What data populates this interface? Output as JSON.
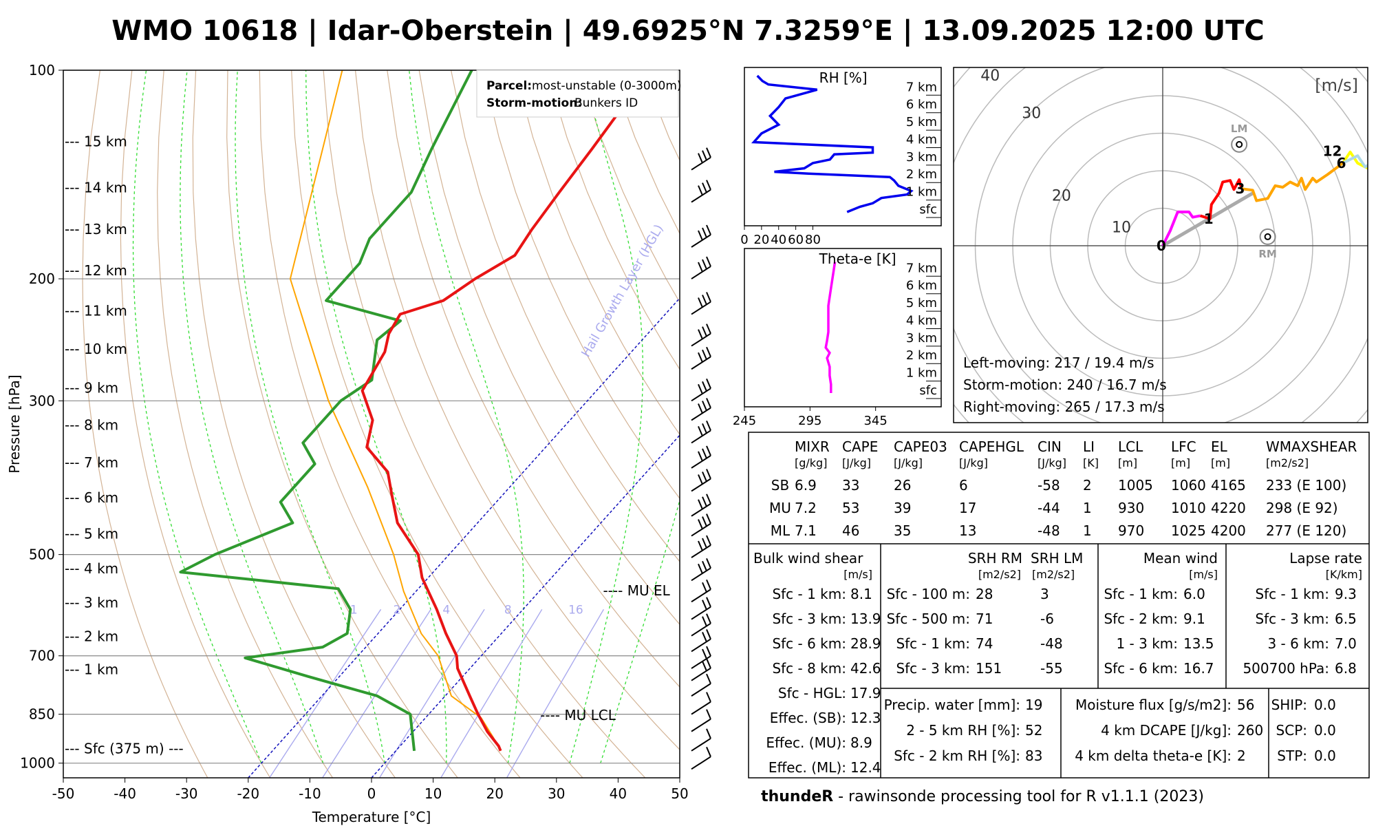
{
  "title": "WMO 10618 | Idar-Oberstein | 49.6925°N 7.3259°E | 13.09.2025 12:00 UTC",
  "footer": {
    "bold": "thundeR",
    "rest": " - rawinsonde processing tool for R v1.1.1 (2023)"
  },
  "skewt": {
    "ylabel": "Pressure [hPa]",
    "xlabel": "Temperature [°C]",
    "x_ticks": [
      -50,
      -40,
      -30,
      -20,
      -10,
      0,
      10,
      20,
      30,
      40,
      50
    ],
    "p_ticks": [
      100,
      200,
      300,
      500,
      700,
      850,
      1000
    ],
    "xlim": [
      -50,
      50
    ],
    "plim": [
      1050,
      100
    ],
    "legend": {
      "parcel_label": "Parcel:",
      "parcel_value": "most-unstable (0-3000m)",
      "storm_label": "Storm-motion:",
      "storm_value": "Bunkers ID"
    },
    "height_labels": [
      {
        "p": 127,
        "text": "--- 15 km"
      },
      {
        "p": 148,
        "text": "--- 14 km"
      },
      {
        "p": 170,
        "text": "--- 13 km"
      },
      {
        "p": 195,
        "text": "--- 12 km"
      },
      {
        "p": 223,
        "text": "--- 11 km"
      },
      {
        "p": 253,
        "text": "--- 10 km"
      },
      {
        "p": 288,
        "text": "--- 9 km"
      },
      {
        "p": 326,
        "text": "--- 8 km"
      },
      {
        "p": 369,
        "text": "--- 7 km"
      },
      {
        "p": 415,
        "text": "--- 6 km"
      },
      {
        "p": 468,
        "text": "--- 5 km"
      },
      {
        "p": 525,
        "text": "--- 4 km"
      },
      {
        "p": 588,
        "text": "--- 3 km"
      },
      {
        "p": 658,
        "text": "--- 2 km"
      },
      {
        "p": 734,
        "text": "--- 1 km"
      },
      {
        "p": 955,
        "text": "--- Sfc (375 m) ---"
      }
    ],
    "annotations": [
      {
        "p": 565,
        "t": 9,
        "text": "---- MU EL"
      },
      {
        "p": 855,
        "t": 17,
        "text": "---- MU LCL"
      }
    ],
    "hgl_label": "Hail Growth Layer (HGL)",
    "mix_labels": [
      "1",
      "2",
      "4",
      "8",
      "16"
    ],
    "colors": {
      "temp": "#e81414",
      "dew": "#2f9a2f",
      "parcel": "#ffa500",
      "isotherm": "#1111bb",
      "dry": "#c8a07a",
      "moist": "#33dd33",
      "mix": "#aaaaee"
    }
  },
  "chart_data": [
    {
      "type": "line",
      "title": "",
      "xlabel": "Temperature [°C]",
      "ylabel": "Pressure [hPa]",
      "series": [
        {
          "name": "Temperature",
          "points": [
            [
              100,
              -58
            ],
            [
              115,
              -57
            ],
            [
              130,
              -56
            ],
            [
              150,
              -55
            ],
            [
              170,
              -54
            ],
            [
              185,
              -53
            ],
            [
              200,
              -56
            ],
            [
              215,
              -58
            ],
            [
              225,
              -63
            ],
            [
              240,
              -62
            ],
            [
              255,
              -60
            ],
            [
              290,
              -58
            ],
            [
              320,
              -52
            ],
            [
              350,
              -49
            ],
            [
              380,
              -42
            ],
            [
              410,
              -38
            ],
            [
              450,
              -33
            ],
            [
              500,
              -25
            ],
            [
              540,
              -21
            ],
            [
              565,
              -18
            ],
            [
              600,
              -14
            ],
            [
              650,
              -9
            ],
            [
              700,
              -4
            ],
            [
              730,
              -2
            ],
            [
              800,
              4
            ],
            [
              850,
              8
            ],
            [
              900,
              12
            ],
            [
              945,
              16
            ],
            [
              960,
              17
            ]
          ]
        },
        {
          "name": "Dewpoint",
          "points": [
            [
              100,
              -87
            ],
            [
              130,
              -82
            ],
            [
              150,
              -79
            ],
            [
              175,
              -79
            ],
            [
              190,
              -77
            ],
            [
              215,
              -77
            ],
            [
              230,
              -62
            ],
            [
              245,
              -63
            ],
            [
              280,
              -58
            ],
            [
              300,
              -60
            ],
            [
              345,
              -60
            ],
            [
              370,
              -55
            ],
            [
              420,
              -55
            ],
            [
              450,
              -50
            ],
            [
              500,
              -58
            ],
            [
              530,
              -61
            ],
            [
              560,
              -33
            ],
            [
              600,
              -28
            ],
            [
              650,
              -25
            ],
            [
              680,
              -27
            ],
            [
              705,
              -38
            ],
            [
              750,
              -25
            ],
            [
              800,
              -11
            ],
            [
              850,
              -3
            ],
            [
              960,
              3
            ]
          ]
        },
        {
          "name": "MU parcel",
          "points": [
            [
              100,
              -108
            ],
            [
              200,
              -86
            ],
            [
              300,
              -62
            ],
            [
              400,
              -43
            ],
            [
              500,
              -29
            ],
            [
              565,
              -22
            ],
            [
              650,
              -13
            ],
            [
              700,
              -7
            ],
            [
              800,
              1
            ],
            [
              860,
              9
            ],
            [
              920,
              14
            ],
            [
              960,
              17
            ]
          ]
        }
      ]
    },
    {
      "type": "line",
      "title": "",
      "xlabel": "",
      "ylabel": "",
      "x_ticks": [
        0,
        20,
        40,
        60,
        80
      ],
      "y_labels": [
        "7 km",
        "6 km",
        "5 km",
        "4 km",
        "3 km",
        "2 km",
        "1 km",
        "sfc"
      ],
      "series": [
        {
          "name": "RH [%]",
          "points": [
            [
              7.8,
              15
            ],
            [
              7.5,
              21
            ],
            [
              7.3,
              28
            ],
            [
              7.0,
              85
            ],
            [
              6.5,
              48
            ],
            [
              6.0,
              40
            ],
            [
              5.5,
              30
            ],
            [
              5.0,
              40
            ],
            [
              4.5,
              20
            ],
            [
              4.0,
              11
            ],
            [
              3.7,
              150
            ],
            [
              3.4,
              150
            ],
            [
              3.3,
              105
            ],
            [
              3.0,
              100
            ],
            [
              2.8,
              80
            ],
            [
              2.5,
              70
            ],
            [
              2.3,
              35
            ],
            [
              2.2,
              75
            ],
            [
              2.0,
              170
            ],
            [
              1.8,
              175
            ],
            [
              1.5,
              180
            ],
            [
              1.2,
              195
            ],
            [
              1.0,
              190
            ],
            [
              0.8,
              160
            ],
            [
              0.5,
              150
            ],
            [
              0.3,
              135
            ],
            [
              0.0,
              120
            ]
          ]
        }
      ]
    },
    {
      "type": "line",
      "title": "",
      "xlabel": "",
      "ylabel": "",
      "x_ticks": [
        245,
        295,
        345
      ],
      "y_labels": [
        "7 km",
        "6 km",
        "5 km",
        "4 km",
        "3 km",
        "2 km",
        "1 km",
        "sfc"
      ],
      "series": [
        {
          "name": "Theta-e [K]",
          "points": [
            [
              0,
              311
            ],
            [
              0.5,
              311
            ],
            [
              1,
              310
            ],
            [
              1.5,
              310
            ],
            [
              2,
              308
            ],
            [
              2.3,
              310
            ],
            [
              2.6,
              307
            ],
            [
              3,
              308
            ],
            [
              3.5,
              309
            ],
            [
              4,
              309
            ],
            [
              5,
              309
            ],
            [
              6,
              311
            ],
            [
              7,
              313
            ],
            [
              7.5,
              314
            ]
          ]
        }
      ]
    },
    {
      "type": "line",
      "title": "",
      "xlabel": "",
      "ylabel": "",
      "units_label": "[m/s]",
      "ring_labels": [
        "10",
        "20",
        "30",
        "40"
      ],
      "height_marks": [
        {
          "label": "0",
          "u": 0,
          "v": 0
        },
        {
          "label": "1",
          "u": 6.3,
          "v": 3.6
        },
        {
          "label": "3",
          "u": 10.5,
          "v": 7.6
        },
        {
          "label": "6",
          "u": 24.0,
          "v": 11.0
        },
        {
          "label": "12",
          "u": 22.8,
          "v": 12.6
        }
      ],
      "LM": {
        "label": "LM",
        "u": 10.2,
        "v": 13.5
      },
      "RM": {
        "label": "RM",
        "u": 14.0,
        "v": 1.2
      },
      "series": [
        {
          "color": "#ff00ff",
          "points": [
            [
              0,
              0
            ],
            [
              1,
              2
            ],
            [
              2,
              4.5
            ],
            [
              3.5,
              4.5
            ],
            [
              4,
              3.8
            ],
            [
              5,
              4
            ]
          ]
        },
        {
          "color": "#ff0000",
          "points": [
            [
              5,
              4
            ],
            [
              6.3,
              3.6
            ],
            [
              6.5,
              5.5
            ],
            [
              7.5,
              7
            ],
            [
              8,
              8.5
            ],
            [
              9,
              8.7
            ],
            [
              9.5,
              7.5
            ],
            [
              10.2,
              8.8
            ],
            [
              10.5,
              7.6
            ]
          ]
        },
        {
          "color": "#ffa500",
          "points": [
            [
              10.5,
              7.6
            ],
            [
              12,
              7.4
            ],
            [
              12.5,
              6
            ],
            [
              14,
              6.3
            ],
            [
              15,
              8
            ],
            [
              16,
              7.8
            ],
            [
              17,
              8.5
            ],
            [
              18,
              8
            ],
            [
              18.5,
              9
            ],
            [
              19,
              7.5
            ],
            [
              20,
              9
            ],
            [
              20.5,
              8.5
            ],
            [
              22,
              9.5
            ],
            [
              24,
              11
            ]
          ]
        },
        {
          "color": "#ffff00",
          "points": [
            [
              24,
              11
            ],
            [
              25,
              12.5
            ],
            [
              26,
              11
            ],
            [
              28,
              10
            ],
            [
              30,
              9
            ],
            [
              32,
              8.5
            ],
            [
              34,
              7
            ]
          ]
        },
        {
          "color": "#add8e6",
          "points": [
            [
              24,
              11
            ],
            [
              26,
              12
            ],
            [
              27,
              10.5
            ],
            [
              28.5,
              11.5
            ],
            [
              30,
              11.5
            ],
            [
              32,
              11.8
            ],
            [
              34,
              12
            ]
          ]
        }
      ],
      "texts": [
        "Left-moving: 217 / 19.4 m/s",
        "Storm-motion: 240 / 16.7 m/s",
        "Right-moving: 265 / 17.3 m/s"
      ]
    }
  ],
  "table_top": {
    "headers": [
      "MIXR",
      "CAPE",
      "CAPE03",
      "CAPEHGL",
      "CIN",
      "LI",
      "LCL",
      "LFC",
      "EL",
      "WMAXSHEAR"
    ],
    "units": [
      "[g/kg]",
      "[J/kg]",
      "[J/kg]",
      "[J/kg]",
      "[J/kg]",
      "[K]",
      "[m]",
      "[m]",
      "[m]",
      "[m2/s2]"
    ],
    "rows": [
      [
        "SB",
        "6.9",
        "33",
        "26",
        "6",
        "-58",
        "2",
        "1005",
        "1060",
        "4165",
        "233  (E 100)"
      ],
      [
        "MU",
        "7.2",
        "53",
        "39",
        "17",
        "-44",
        "1",
        "930",
        "1010",
        "4220",
        "298  (E 92)"
      ],
      [
        "ML",
        "7.1",
        "46",
        "35",
        "13",
        "-48",
        "1",
        "970",
        "1025",
        "4200",
        "277  (E 120)"
      ]
    ]
  },
  "bulk": {
    "title": "Bulk wind shear",
    "unit": "[m/s]",
    "rows": [
      [
        "Sfc - 1 km:",
        "8.1"
      ],
      [
        "Sfc - 3 km:",
        "13.9"
      ],
      [
        "Sfc - 6 km:",
        "28.9"
      ],
      [
        "Sfc - 8 km:",
        "42.6"
      ],
      [
        "Sfc - HGL:",
        "17.9"
      ],
      [
        "Effec. (SB):",
        "12.3"
      ],
      [
        "Effec. (MU):",
        "8.9"
      ],
      [
        "Effec. (ML):",
        "12.4"
      ]
    ]
  },
  "srh": {
    "h1": "SRH RM",
    "h2": "SRH LM",
    "u1": "[m2/s2]",
    "u2": "[m2/s2]",
    "rows": [
      [
        "Sfc - 100 m:",
        "28",
        "3"
      ],
      [
        "Sfc - 500 m:",
        "71",
        "-6"
      ],
      [
        "Sfc - 1 km:",
        "74",
        "-48"
      ],
      [
        "Sfc - 3 km:",
        "151",
        "-55"
      ]
    ]
  },
  "mean": {
    "title": "Mean wind",
    "unit": "[m/s]",
    "rows": [
      [
        "Sfc - 1 km:",
        "6.0"
      ],
      [
        "Sfc - 2 km:",
        "9.1"
      ],
      [
        "1 - 3 km:",
        "13.5"
      ],
      [
        "Sfc - 6 km:",
        "16.7"
      ]
    ]
  },
  "lapse": {
    "title": "Lapse rate",
    "unit": "[K/km]",
    "rows": [
      [
        "Sfc - 1 km:",
        "9.3"
      ],
      [
        "Sfc - 3 km:",
        "6.5"
      ],
      [
        "3 - 6 km:",
        "7.0"
      ],
      [
        "500700 hPa:",
        "6.8"
      ]
    ]
  },
  "misc1": [
    [
      "Precip. water [mm]:",
      "19"
    ],
    [
      "2 - 5 km RH [%]:",
      "52"
    ],
    [
      "Sfc - 2 km RH [%]:",
      "83"
    ]
  ],
  "misc2": [
    [
      "Moisture flux [g/s/m2]:",
      "56"
    ],
    [
      "4 km DCAPE [J/kg]:",
      "260"
    ],
    [
      "4 km delta theta-e [K]:",
      "2"
    ]
  ],
  "misc3": [
    [
      "SHIP:",
      "0.0"
    ],
    [
      "SCP:",
      "0.0"
    ],
    [
      "STP:",
      "0.0"
    ]
  ]
}
